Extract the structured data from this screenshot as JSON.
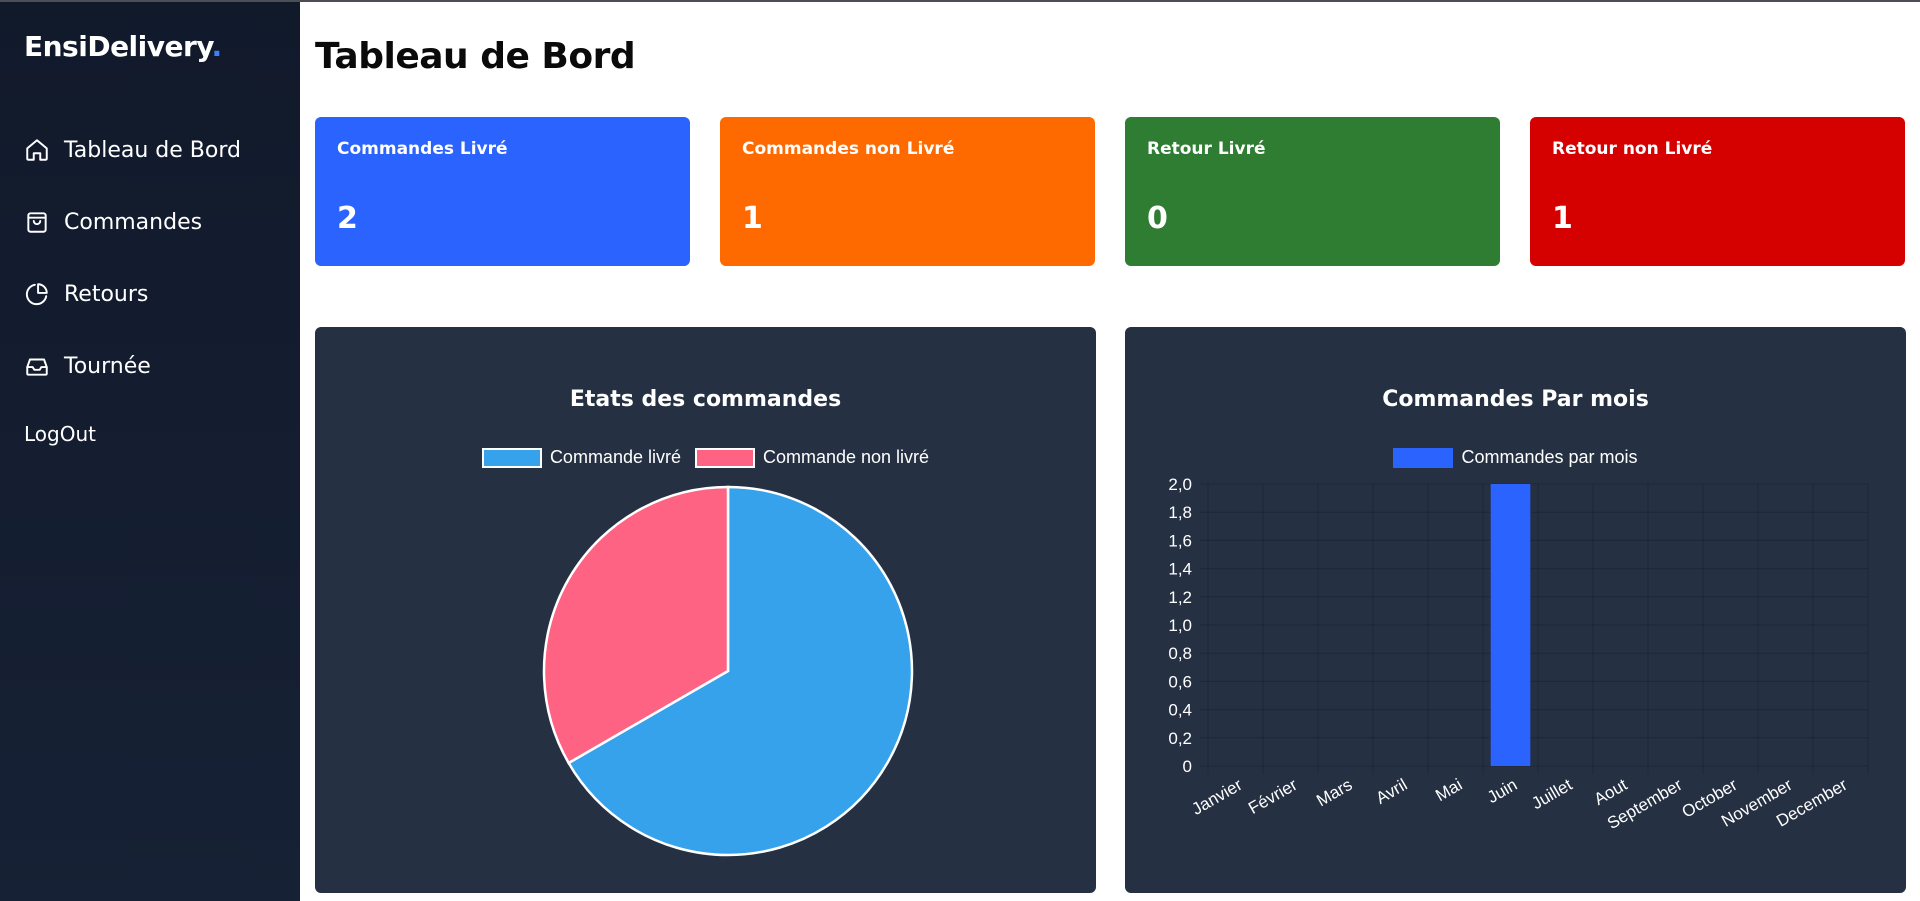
{
  "app": {
    "logo_text": "EnsiDelivery",
    "logo_dot": "."
  },
  "sidebar": {
    "items": [
      {
        "label": "Tableau de Bord",
        "icon": "home-icon"
      },
      {
        "label": "Commandes",
        "icon": "shopping-bag-icon"
      },
      {
        "label": "Retours",
        "icon": "pie-chart-icon"
      },
      {
        "label": "Tournée",
        "icon": "inbox-tray-icon"
      }
    ],
    "logout_label": "LogOut"
  },
  "page": {
    "title": "Tableau de Bord"
  },
  "stats": [
    {
      "label": "Commandes Livré",
      "value": "2",
      "color": "#2b63ff"
    },
    {
      "label": "Commandes non Livré",
      "value": "1",
      "color": "#ff6a00"
    },
    {
      "label": "Retour Livré",
      "value": "0",
      "color": "#2e7d32"
    },
    {
      "label": "Retour non Livré",
      "value": "1",
      "color": "#d50000"
    }
  ],
  "colors": {
    "panel_bg": "#253043",
    "sidebar_bg": "#131c2d",
    "pie_delivered": "#36a2eb",
    "pie_not_delivered": "#ff6384",
    "bar": "#2b63ff"
  },
  "chart_data": [
    {
      "type": "pie",
      "title": "Etats des commandes",
      "labels": [
        "Commande livré",
        "Commande non livré"
      ],
      "values": [
        2,
        1
      ],
      "colors": [
        "#36a2eb",
        "#ff6384"
      ],
      "legend": "top"
    },
    {
      "type": "bar",
      "title": "Commandes Par mois",
      "categories": [
        "Janvier",
        "Février",
        "Mars",
        "Avril",
        "Mai",
        "Juin",
        "Juillet",
        "Aout",
        "September",
        "October",
        "November",
        "December"
      ],
      "series": [
        {
          "name": "Commandes par mois",
          "values": [
            0,
            0,
            0,
            0,
            0,
            2,
            0,
            0,
            0,
            0,
            0,
            0
          ],
          "color": "#2b63ff"
        }
      ],
      "ylim": [
        0,
        2
      ],
      "yticks": [
        "0",
        "0,2",
        "0,4",
        "0,6",
        "0,8",
        "1,0",
        "1,2",
        "1,4",
        "1,6",
        "1,8",
        "2,0"
      ],
      "grid": true,
      "legend": "top"
    }
  ]
}
